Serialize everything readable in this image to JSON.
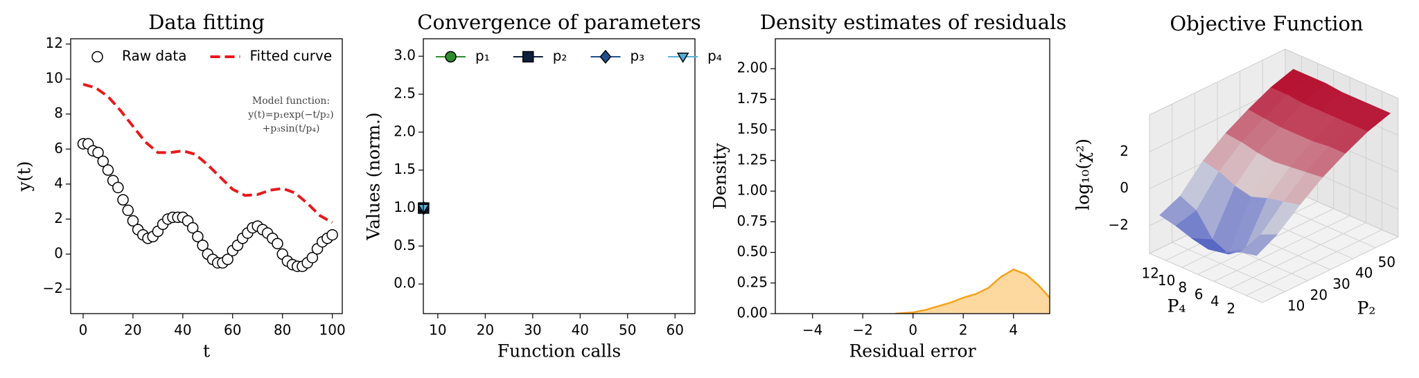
{
  "chart_data": [
    {
      "type": "line",
      "title": "Data fitting",
      "xlabel": "t",
      "ylabel": "y(t)",
      "xlim": [
        -5,
        104
      ],
      "ylim": [
        -3.4,
        12.3
      ],
      "xticks": [
        0,
        20,
        40,
        60,
        80,
        100
      ],
      "yticks": [
        {
          "value": -2,
          "label": "−2"
        },
        0,
        2,
        4,
        6,
        8,
        10,
        12
      ],
      "legend": "upper center",
      "annotation": [
        "Model function:",
        "y(t)=p₁exp(−t/p₂)",
        "+p₃sin(t/p₄)"
      ],
      "series": [
        {
          "name": "Raw data",
          "color": "#000000",
          "marker": "circle",
          "linestyle": "none",
          "x": [
            0,
            2,
            4,
            6,
            8,
            10,
            12,
            14,
            16,
            18,
            20,
            22,
            24,
            26,
            28,
            30,
            32,
            34,
            36,
            38,
            40,
            42,
            44,
            46,
            48,
            50,
            52,
            54,
            56,
            58,
            60,
            62,
            64,
            66,
            68,
            70,
            72,
            74,
            76,
            78,
            80,
            82,
            84,
            86,
            88,
            90,
            92,
            94,
            96,
            98,
            100
          ],
          "values": [
            6.3,
            6.3,
            5.9,
            5.8,
            5.3,
            4.8,
            4.2,
            3.8,
            3.1,
            2.5,
            1.9,
            1.4,
            1.1,
            0.9,
            1.0,
            1.3,
            1.7,
            2.0,
            2.1,
            2.1,
            2.1,
            1.9,
            1.5,
            1.0,
            0.5,
            0.0,
            -0.3,
            -0.5,
            -0.5,
            -0.3,
            0.2,
            0.5,
            0.9,
            1.2,
            1.5,
            1.6,
            1.4,
            1.2,
            0.9,
            0.6,
            0.0,
            -0.4,
            -0.6,
            -0.7,
            -0.7,
            -0.5,
            -0.2,
            0.3,
            0.7,
            0.9,
            1.1
          ]
        },
        {
          "name": "Fitted curve",
          "color": "#e8191c",
          "marker": "none",
          "linestyle": "dashed",
          "x": [
            0,
            5,
            10,
            15,
            20,
            25,
            30,
            35,
            40,
            45,
            50,
            55,
            60,
            65,
            70,
            75,
            80,
            85,
            90,
            95,
            100
          ],
          "values": [
            9.7,
            9.5,
            9.0,
            8.2,
            7.3,
            6.4,
            5.8,
            5.8,
            5.9,
            5.7,
            5.1,
            4.4,
            3.7,
            3.35,
            3.4,
            3.65,
            3.75,
            3.5,
            2.9,
            2.2,
            1.8
          ]
        }
      ]
    },
    {
      "type": "line",
      "title": "Convergence of parameters",
      "xlabel": "Function calls",
      "ylabel": "Values (norm.)",
      "xlim": [
        6.95,
        64.2
      ],
      "ylim": [
        -0.39,
        3.23
      ],
      "xticks": [
        10,
        20,
        30,
        40,
        50,
        60
      ],
      "yticks": [
        {
          "value": 0,
          "label": "0.0"
        },
        0.5,
        {
          "value": 1,
          "label": "1.0"
        },
        1.5,
        {
          "value": 2,
          "label": "2.0"
        },
        2.5,
        {
          "value": 3,
          "label": "3.0"
        }
      ],
      "legend": "upper left",
      "series": [
        {
          "name": "p₁",
          "color": "#2e8b2e",
          "marker": "circle",
          "linestyle": "solid",
          "x": [
            7
          ],
          "values": [
            1.0
          ]
        },
        {
          "name": "p₂",
          "color": "#0d1f3c",
          "marker": "square",
          "linestyle": "solid",
          "x": [
            7
          ],
          "values": [
            1.0
          ]
        },
        {
          "name": "p₃",
          "color": "#1f4f8f",
          "marker": "diamond",
          "linestyle": "solid",
          "x": [
            7
          ],
          "values": [
            1.0
          ]
        },
        {
          "name": "p₄",
          "color": "#5aaed6",
          "marker": "triangle-down",
          "linestyle": "solid",
          "x": [
            7
          ],
          "values": [
            1.0
          ]
        }
      ]
    },
    {
      "type": "area",
      "title": "Density estimates of residuals",
      "xlabel": "Residual error",
      "ylabel": "Density",
      "xlim": [
        -5.48,
        5.44
      ],
      "ylim": [
        0,
        2.244
      ],
      "xticks": [
        {
          "value": -4,
          "label": "−4"
        },
        {
          "value": -2,
          "label": "−2"
        },
        0,
        2,
        4
      ],
      "yticks": [
        {
          "value": 0,
          "label": "0.00"
        },
        0.25,
        {
          "value": 0.5,
          "label": "0.50"
        },
        0.75,
        {
          "value": 1,
          "label": "1.00"
        },
        1.25,
        {
          "value": 1.5,
          "label": "1.50"
        },
        1.75,
        {
          "value": 2,
          "label": "2.00"
        }
      ],
      "series": [
        {
          "color": "#f5a21b",
          "fill": "#fdd9a0",
          "x": [
            -0.7,
            0,
            0.5,
            1,
            1.5,
            2,
            2.5,
            3,
            3.5,
            4,
            4.5,
            5,
            5.44
          ],
          "values": [
            0,
            0.01,
            0.03,
            0.06,
            0.09,
            0.13,
            0.16,
            0.21,
            0.3,
            0.36,
            0.32,
            0.23,
            0.13
          ]
        }
      ]
    },
    {
      "type": "surface",
      "title": "Objective Function",
      "xlabel": "P₂",
      "ylabel": "P₄",
      "zlabel": "log₁₀(χ²)",
      "xlim": [
        0,
        60
      ],
      "ylim": [
        0,
        14
      ],
      "zlim": [
        -3.5,
        4
      ],
      "xticks": [
        10,
        20,
        30,
        40,
        50
      ],
      "yticks": [
        2,
        4,
        6,
        8,
        10,
        12
      ],
      "zticks": [
        {
          "value": -2,
          "label": "−2"
        },
        0,
        2
      ],
      "colormap": [
        "#3b4cc0",
        "#dddddd",
        "#b40426"
      ],
      "x": [
        1,
        10,
        20,
        30,
        40,
        50,
        60
      ],
      "y": [
        1,
        3,
        5,
        7,
        9,
        11,
        13
      ],
      "z": [
        [
          -1.2,
          -0.6,
          0.4,
          1.3,
          2.0,
          2.6,
          3.0
        ],
        [
          -1.4,
          -1.0,
          0.2,
          1.2,
          2.0,
          2.6,
          3.0
        ],
        [
          -1.8,
          -2.2,
          0.0,
          1.1,
          1.9,
          2.6,
          3.0
        ],
        [
          -2.0,
          -2.8,
          -0.3,
          1.0,
          1.9,
          2.6,
          3.0
        ],
        [
          -1.8,
          -2.4,
          -0.1,
          1.1,
          1.9,
          2.6,
          3.1
        ],
        [
          -1.5,
          -1.2,
          0.3,
          1.3,
          2.0,
          2.7,
          3.1
        ],
        [
          -1.3,
          -0.8,
          0.5,
          1.4,
          2.1,
          2.7,
          3.1
        ]
      ]
    }
  ]
}
